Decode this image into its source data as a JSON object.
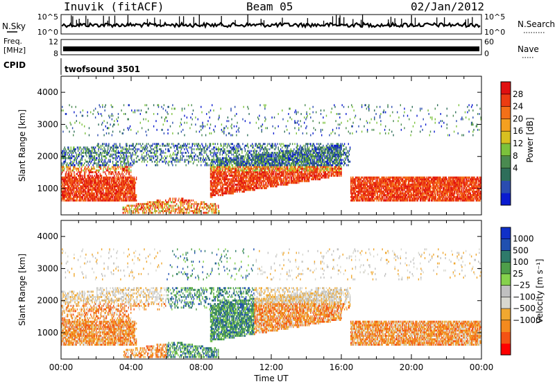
{
  "header": {
    "radar": "Inuvik (fitACF)",
    "beam": "Beam 05",
    "date": "02/Jan/2012"
  },
  "top_panels": {
    "nsky_label": "N.Sky",
    "nsky_ticks": [
      "10^5",
      "10^0"
    ],
    "nsearch_label": "N.Search",
    "nsearch_ticks": [
      "10^5",
      "10^0"
    ],
    "freq_label_1": "Freq.",
    "freq_label_2": "[MHz]",
    "freq_ticks": [
      "12",
      "8"
    ],
    "nave_label": "Nave",
    "nave_ticks": [
      "60",
      "0"
    ],
    "cpid_label": "CPID",
    "cpid_value": "twofsound 3501"
  },
  "chart_data": [
    {
      "type": "heatmap",
      "title": "",
      "xlabel": "",
      "ylabel": "Slant Range [km]",
      "x_ticks": [
        "00:00",
        "04:00",
        "08:00",
        "12:00",
        "16:00",
        "20:00",
        "00:00"
      ],
      "xlim_hours": [
        0,
        24
      ],
      "y_ticks": [
        1000,
        2000,
        3000,
        4000
      ],
      "ylim": [
        180,
        4500
      ],
      "colorbar": {
        "label": "Power [dB]",
        "ticks": [
          "28",
          "24",
          "20",
          "16",
          "12",
          "8",
          "4"
        ],
        "colors": [
          "#0a1bd0",
          "#2a4cb0",
          "#2e6e5a",
          "#4a8a50",
          "#7cc23c",
          "#d8c020",
          "#f4a020",
          "#f47018",
          "#ec3c12",
          "#e01010"
        ]
      }
    },
    {
      "type": "heatmap",
      "title": "",
      "xlabel": "Time UT",
      "ylabel": "Slant Range [km]",
      "x_ticks": [
        "00:00",
        "04:00",
        "08:00",
        "12:00",
        "16:00",
        "20:00",
        "00:00"
      ],
      "xlim_hours": [
        0,
        24
      ],
      "y_ticks": [
        1000,
        2000,
        3000,
        4000
      ],
      "ylim": [
        180,
        4500
      ],
      "colorbar": {
        "label": "Velocity [m s⁻¹]",
        "ticks": [
          "1000",
          "500",
          "100",
          "25",
          "−25",
          "−100",
          "−500",
          "−1000"
        ],
        "colors": [
          "#ff0000",
          "#f35214",
          "#f38a1e",
          "#f0a830",
          "#d8d8d0",
          "#c0c0c0",
          "#86d24c",
          "#4e9e4a",
          "#2e7a6a",
          "#2050b0",
          "#1030c8"
        ]
      }
    }
  ]
}
